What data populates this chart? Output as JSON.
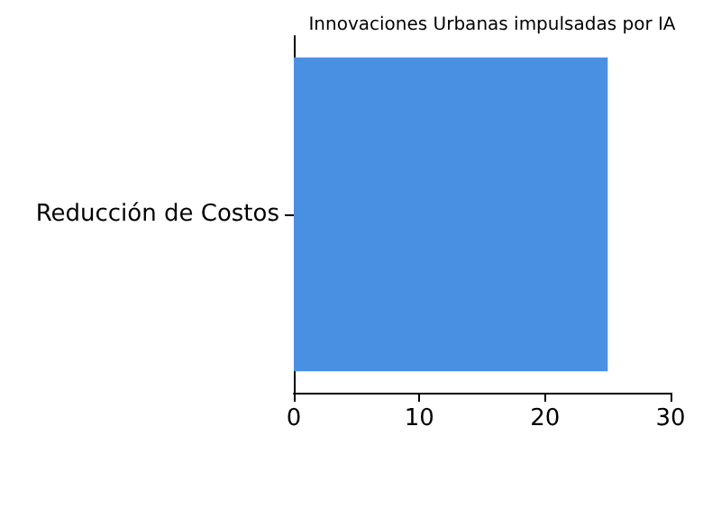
{
  "chart_data": {
    "type": "bar",
    "orientation": "horizontal",
    "title": "Innovaciones Urbanas impulsadas por IA",
    "categories": [
      "Reducción de Costos"
    ],
    "series": [
      {
        "color": "#4a90e2",
        "values": [
          25
        ]
      }
    ],
    "xlim": [
      0,
      30
    ],
    "xticks": [
      0,
      10,
      20,
      30
    ],
    "grid": false
  }
}
